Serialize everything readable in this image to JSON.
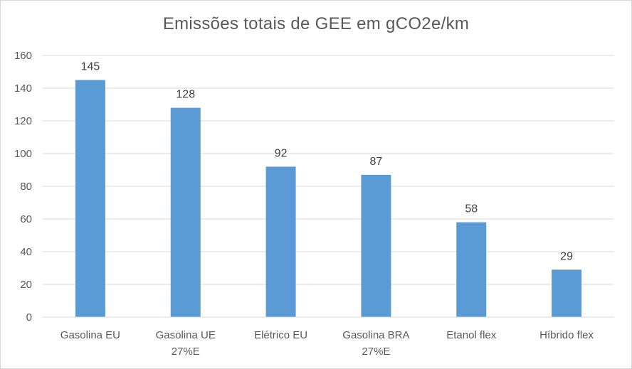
{
  "chart_data": {
    "type": "bar",
    "title": "Emissões totais de GEE em gCO2e/km",
    "xlabel": "",
    "ylabel": "",
    "categories": [
      [
        "Gasolina EU"
      ],
      [
        "Gasolina UE",
        "27%E"
      ],
      [
        "Elétrico EU"
      ],
      [
        "Gasolina BRA",
        "27%E"
      ],
      [
        "Etanol flex"
      ],
      [
        "Híbrido flex"
      ]
    ],
    "values": [
      145,
      128,
      92,
      87,
      58,
      29
    ],
    "data_labels": [
      "145",
      "128",
      "92",
      "87",
      "58",
      "29"
    ],
    "y_ticks": [
      "0",
      "20",
      "40",
      "60",
      "80",
      "100",
      "120",
      "140",
      "160"
    ],
    "ylim": [
      0,
      160
    ],
    "grid": true,
    "legend": "none",
    "bar_color": "#5b9bd5",
    "grid_color": "#d9d9d9",
    "axis_color": "#d9d9d9"
  }
}
